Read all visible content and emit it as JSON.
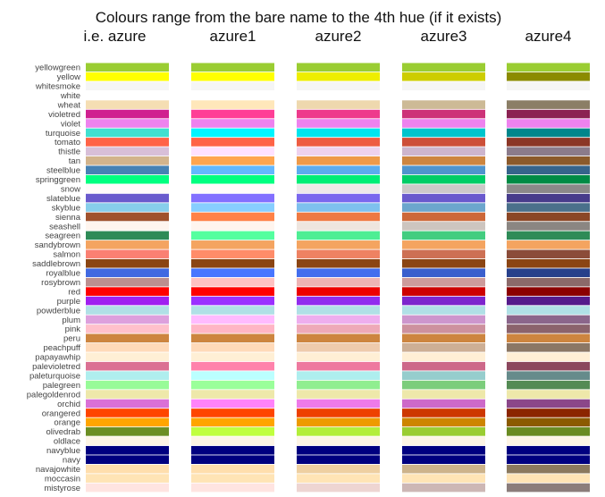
{
  "chart_data": {
    "type": "heatmap",
    "title": "Colours range from the bare name to the 4th hue (if it exists)",
    "columns": [
      "i.e. azure",
      "azure1",
      "azure2",
      "azure3",
      "azure4"
    ],
    "rows": [
      {
        "name": "yellowgreen",
        "colors": [
          "#9acd32",
          "#9acd32",
          "#9acd32",
          "#9acd32",
          "#9acd32"
        ]
      },
      {
        "name": "yellow",
        "colors": [
          "#ffff00",
          "#ffff00",
          "#eeee00",
          "#cdcd00",
          "#8b8b00"
        ]
      },
      {
        "name": "whitesmoke",
        "colors": [
          "#f5f5f5",
          "#f5f5f5",
          "#f5f5f5",
          "#f5f5f5",
          "#f5f5f5"
        ]
      },
      {
        "name": "white",
        "colors": [
          "#ffffff",
          "#ffffff",
          "#ffffff",
          "#ffffff",
          "#ffffff"
        ]
      },
      {
        "name": "wheat",
        "colors": [
          "#f5deb3",
          "#ffe7ba",
          "#eed8ae",
          "#cdba96",
          "#8b7e66"
        ]
      },
      {
        "name": "violetred",
        "colors": [
          "#d02090",
          "#ff3e96",
          "#ee3a8c",
          "#cd3278",
          "#8b2252"
        ]
      },
      {
        "name": "violet",
        "colors": [
          "#ee82ee",
          "#ee82ee",
          "#ee82ee",
          "#ee82ee",
          "#ee82ee"
        ]
      },
      {
        "name": "turquoise",
        "colors": [
          "#40e0d0",
          "#00f5ff",
          "#00e5ee",
          "#00c5cd",
          "#00868b"
        ]
      },
      {
        "name": "tomato",
        "colors": [
          "#ff6347",
          "#ff6347",
          "#ee5c42",
          "#cd4f39",
          "#8b3626"
        ]
      },
      {
        "name": "thistle",
        "colors": [
          "#d8bfd8",
          "#ffe1ff",
          "#eed2ee",
          "#cdb5cd",
          "#8b7b8b"
        ]
      },
      {
        "name": "tan",
        "colors": [
          "#d2b48c",
          "#ffa54f",
          "#ee9a49",
          "#cd853f",
          "#8b5a2b"
        ]
      },
      {
        "name": "steelblue",
        "colors": [
          "#4682b4",
          "#63b8ff",
          "#5cacee",
          "#4f94cd",
          "#36648b"
        ]
      },
      {
        "name": "springgreen",
        "colors": [
          "#00ff7f",
          "#00ff7f",
          "#00ee76",
          "#00cd66",
          "#008b45"
        ]
      },
      {
        "name": "snow",
        "colors": [
          "#fffafa",
          "#fffafa",
          "#eee9e9",
          "#cdc9c9",
          "#8b8989"
        ]
      },
      {
        "name": "slateblue",
        "colors": [
          "#6a5acd",
          "#836fff",
          "#7a67ee",
          "#6959cd",
          "#473c8b"
        ]
      },
      {
        "name": "skyblue",
        "colors": [
          "#87ceeb",
          "#87ceff",
          "#7ec0ee",
          "#6ca6cd",
          "#4a708b"
        ]
      },
      {
        "name": "sienna",
        "colors": [
          "#a0522d",
          "#ff8247",
          "#ee7942",
          "#cd6839",
          "#8b4726"
        ]
      },
      {
        "name": "seashell",
        "colors": [
          "#fff5ee",
          "#fff5ee",
          "#eee5de",
          "#cdc5bf",
          "#8b8682"
        ]
      },
      {
        "name": "seagreen",
        "colors": [
          "#2e8b57",
          "#54ff9f",
          "#4eee94",
          "#43cd80",
          "#2e8b57"
        ]
      },
      {
        "name": "sandybrown",
        "colors": [
          "#f4a460",
          "#f4a460",
          "#f4a460",
          "#f4a460",
          "#f4a460"
        ]
      },
      {
        "name": "salmon",
        "colors": [
          "#fa8072",
          "#ff8c69",
          "#ee8262",
          "#cd7054",
          "#8b4c39"
        ]
      },
      {
        "name": "saddlebrown",
        "colors": [
          "#8b4513",
          "#8b4513",
          "#8b4513",
          "#8b4513",
          "#8b4513"
        ]
      },
      {
        "name": "royalblue",
        "colors": [
          "#4169e1",
          "#4876ff",
          "#436eee",
          "#3a5fcd",
          "#27408b"
        ]
      },
      {
        "name": "rosybrown",
        "colors": [
          "#bc8f8f",
          "#ffc1c1",
          "#eeb4b4",
          "#cd9b9b",
          "#8b6969"
        ]
      },
      {
        "name": "red",
        "colors": [
          "#ff0000",
          "#ff0000",
          "#ee0000",
          "#cd0000",
          "#8b0000"
        ]
      },
      {
        "name": "purple",
        "colors": [
          "#a020f0",
          "#9b30ff",
          "#912cee",
          "#7d26cd",
          "#551a8b"
        ]
      },
      {
        "name": "powderblue",
        "colors": [
          "#b0e0e6",
          "#b0e0e6",
          "#b0e0e6",
          "#b0e0e6",
          "#b0e0e6"
        ]
      },
      {
        "name": "plum",
        "colors": [
          "#dda0dd",
          "#ffbbff",
          "#eeaeee",
          "#cd96cd",
          "#8b668b"
        ]
      },
      {
        "name": "pink",
        "colors": [
          "#ffc0cb",
          "#ffb5c5",
          "#eea9b8",
          "#cd919e",
          "#8b636c"
        ]
      },
      {
        "name": "peru",
        "colors": [
          "#cd853f",
          "#cd853f",
          "#cd853f",
          "#cd853f",
          "#cd853f"
        ]
      },
      {
        "name": "peachpuff",
        "colors": [
          "#ffdab9",
          "#ffdab9",
          "#eecbad",
          "#cdaf95",
          "#8b7765"
        ]
      },
      {
        "name": "papayawhip",
        "colors": [
          "#ffefd5",
          "#ffefd5",
          "#ffefd5",
          "#ffefd5",
          "#ffefd5"
        ]
      },
      {
        "name": "palevioletred",
        "colors": [
          "#db7093",
          "#ff82ab",
          "#ee799f",
          "#cd6889",
          "#8b475d"
        ]
      },
      {
        "name": "paleturquoise",
        "colors": [
          "#afeeee",
          "#bbffff",
          "#aeeeee",
          "#96cdcd",
          "#668b8b"
        ]
      },
      {
        "name": "palegreen",
        "colors": [
          "#98fb98",
          "#9aff9a",
          "#90ee90",
          "#7ccd7c",
          "#548b54"
        ]
      },
      {
        "name": "palegoldenrod",
        "colors": [
          "#eee8aa",
          "#eee8aa",
          "#eee8aa",
          "#eee8aa",
          "#eee8aa"
        ]
      },
      {
        "name": "orchid",
        "colors": [
          "#da70d6",
          "#ff83fa",
          "#ee7ae9",
          "#cd69c9",
          "#8b4789"
        ]
      },
      {
        "name": "orangered",
        "colors": [
          "#ff4500",
          "#ff4500",
          "#ee4000",
          "#cd3700",
          "#8b2500"
        ]
      },
      {
        "name": "orange",
        "colors": [
          "#ffa500",
          "#ffa500",
          "#ee9a00",
          "#cd8500",
          "#8b5a00"
        ]
      },
      {
        "name": "olivedrab",
        "colors": [
          "#6b8e23",
          "#c0ff3e",
          "#b3ee3a",
          "#9acd32",
          "#698b22"
        ]
      },
      {
        "name": "oldlace",
        "colors": [
          "#fdf5e6",
          "#fdf5e6",
          "#fdf5e6",
          "#fdf5e6",
          "#fdf5e6"
        ]
      },
      {
        "name": "navyblue",
        "colors": [
          "#000080",
          "#000080",
          "#000080",
          "#000080",
          "#000080"
        ]
      },
      {
        "name": "navy",
        "colors": [
          "#000080",
          "#000080",
          "#000080",
          "#000080",
          "#000080"
        ]
      },
      {
        "name": "navajowhite",
        "colors": [
          "#ffdead",
          "#ffdead",
          "#eecfa1",
          "#cdb38b",
          "#8b795e"
        ]
      },
      {
        "name": "moccasin",
        "colors": [
          "#ffe4b5",
          "#ffe4b5",
          "#ffe4b5",
          "#ffe4b5",
          "#ffe4b5"
        ]
      },
      {
        "name": "mistyrose",
        "colors": [
          "#ffe4e1",
          "#ffe4e1",
          "#eed5d2",
          "#cdb7b5",
          "#8b7d7b"
        ]
      }
    ]
  }
}
